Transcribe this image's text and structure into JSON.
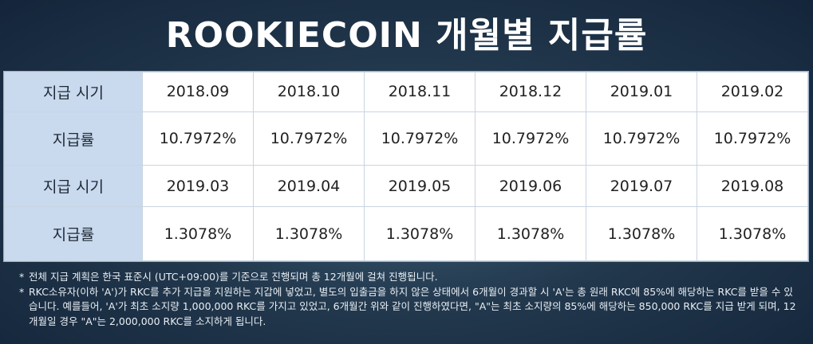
{
  "title": "ROOKIECOIN 개월별 지급률",
  "table": {
    "period_label": "지급 시기",
    "rate_label": "지급률",
    "block1": {
      "periods": [
        "2018.09",
        "2018.10",
        "2018.11",
        "2018.12",
        "2019.01",
        "2019.02"
      ],
      "rates": [
        "10.7972%",
        "10.7972%",
        "10.7972%",
        "10.7972%",
        "10.7972%",
        "10.7972%"
      ]
    },
    "block2": {
      "periods": [
        "2019.03",
        "2019.04",
        "2019.05",
        "2019.06",
        "2019.07",
        "2019.08"
      ],
      "rates": [
        "1.3078%",
        "1.3078%",
        "1.3078%",
        "1.3078%",
        "1.3078%",
        "1.3078%"
      ]
    }
  },
  "notes": {
    "star": "*",
    "note1": "전체 지급 계획은 한국 표준시 (UTC+09:00)를 기준으로 진행되며 총 12개월에 걸쳐 진행됩니다.",
    "note2": "RKC소유자(이하 'A')가 RKC를 추가 지급을 지원하는 지갑에 넣었고, 별도의 입출금을 하지 않은 상태에서 6개월이 경과할 시 'A'는 총 원래 RKC에 85%에 해당하는 RKC를 받을 수 있습니다. 예를들어, 'A'가 최초 소지량 1,000,000 RKC를 가지고 있었고, 6개월간 위와 같이 진행하였다면, \"A\"는 최초 소지량의 85%에 해당하는 850,000 RKC를 지급 받게 되며, 12개월일 경우 \"A\"는 2,000,000 RKC를 소지하게 됩니다."
  }
}
